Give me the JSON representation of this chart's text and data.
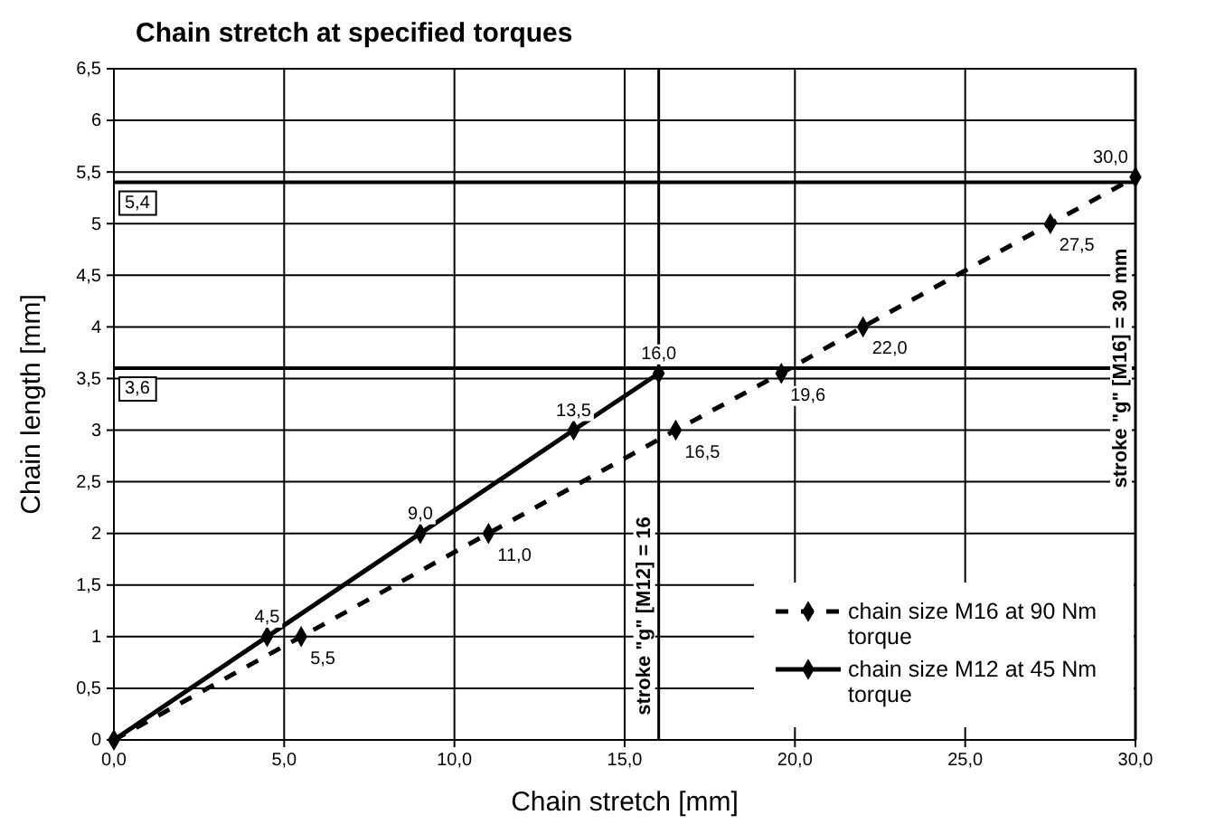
{
  "chart_data": {
    "type": "line",
    "title": "Chain stretch at specified torques",
    "xlabel": "Chain stretch [mm]",
    "ylabel": "Chain length [mm]",
    "xlim": [
      0,
      30
    ],
    "ylim": [
      0,
      6.5
    ],
    "xticks": [
      {
        "value": 0,
        "label": "0,0"
      },
      {
        "value": 5,
        "label": "5,0"
      },
      {
        "value": 10,
        "label": "10,0"
      },
      {
        "value": 15,
        "label": "15,0"
      },
      {
        "value": 20,
        "label": "20,0"
      },
      {
        "value": 25,
        "label": "25,0"
      },
      {
        "value": 30,
        "label": "30,0"
      }
    ],
    "yticks": [
      0,
      {
        "value": 0.5,
        "label": "0,5"
      },
      1,
      {
        "value": 1.5,
        "label": "1,5"
      },
      2,
      {
        "value": 2.5,
        "label": "2,5"
      },
      3,
      {
        "value": 3.5,
        "label": "3,5"
      },
      4,
      {
        "value": 4.5,
        "label": "4,5"
      },
      5,
      {
        "value": 5.5,
        "label": "5,5"
      },
      6,
      {
        "value": 6.5,
        "label": "6,5"
      }
    ],
    "grid": true,
    "legend": "bottom right",
    "marker": "diamond",
    "series": [
      {
        "name": "chain size M16 at 90 Nm torque",
        "color": "#000000",
        "line_style": "dashed",
        "x": [
          0,
          5.5,
          11,
          16.5,
          19.6,
          22,
          27.5,
          30
        ],
        "values": [
          0,
          1,
          2,
          3,
          3.55,
          4,
          5,
          5.45
        ]
      },
      {
        "name": "chain size M12 at 45 Nm torque",
        "color": "#000000",
        "line_style": "solid",
        "x": [
          0,
          4.5,
          9,
          13.5,
          16
        ],
        "values": [
          0,
          1,
          2,
          3,
          3.55
        ]
      }
    ],
    "annotations": [
      {
        "text": "5,5",
        "x": 5.5,
        "y": 1
      },
      {
        "text": "11,0",
        "x": 11,
        "y": 2
      },
      {
        "text": "16,5",
        "x": 16.5,
        "y": 3
      },
      {
        "text": "19,6",
        "x": 19.6,
        "y": 3.55
      },
      {
        "text": "22,0",
        "x": 22,
        "y": 4
      },
      {
        "text": "27,5",
        "x": 27.5,
        "y": 5
      },
      {
        "text": "30,0",
        "x": 30,
        "y": 5.45
      },
      {
        "text": "4,5",
        "x": 4.5,
        "y": 1
      },
      {
        "text": "9,0",
        "x": 9,
        "y": 2
      },
      {
        "text": "13,5",
        "x": 13.5,
        "y": 3
      },
      {
        "text": "16,0",
        "x": 16,
        "y": 3.55
      }
    ],
    "ref_lines": [
      {
        "axis": "y",
        "value": 5.4,
        "label": "5,4"
      },
      {
        "axis": "y",
        "value": 3.6,
        "label": "3,6"
      },
      {
        "axis": "x",
        "value": 16,
        "label": "stroke \"g\"  [M12] = 16"
      },
      {
        "axis": "x",
        "value": 30,
        "label": "stroke \"g\"  [M16] = 30 mm"
      }
    ]
  }
}
